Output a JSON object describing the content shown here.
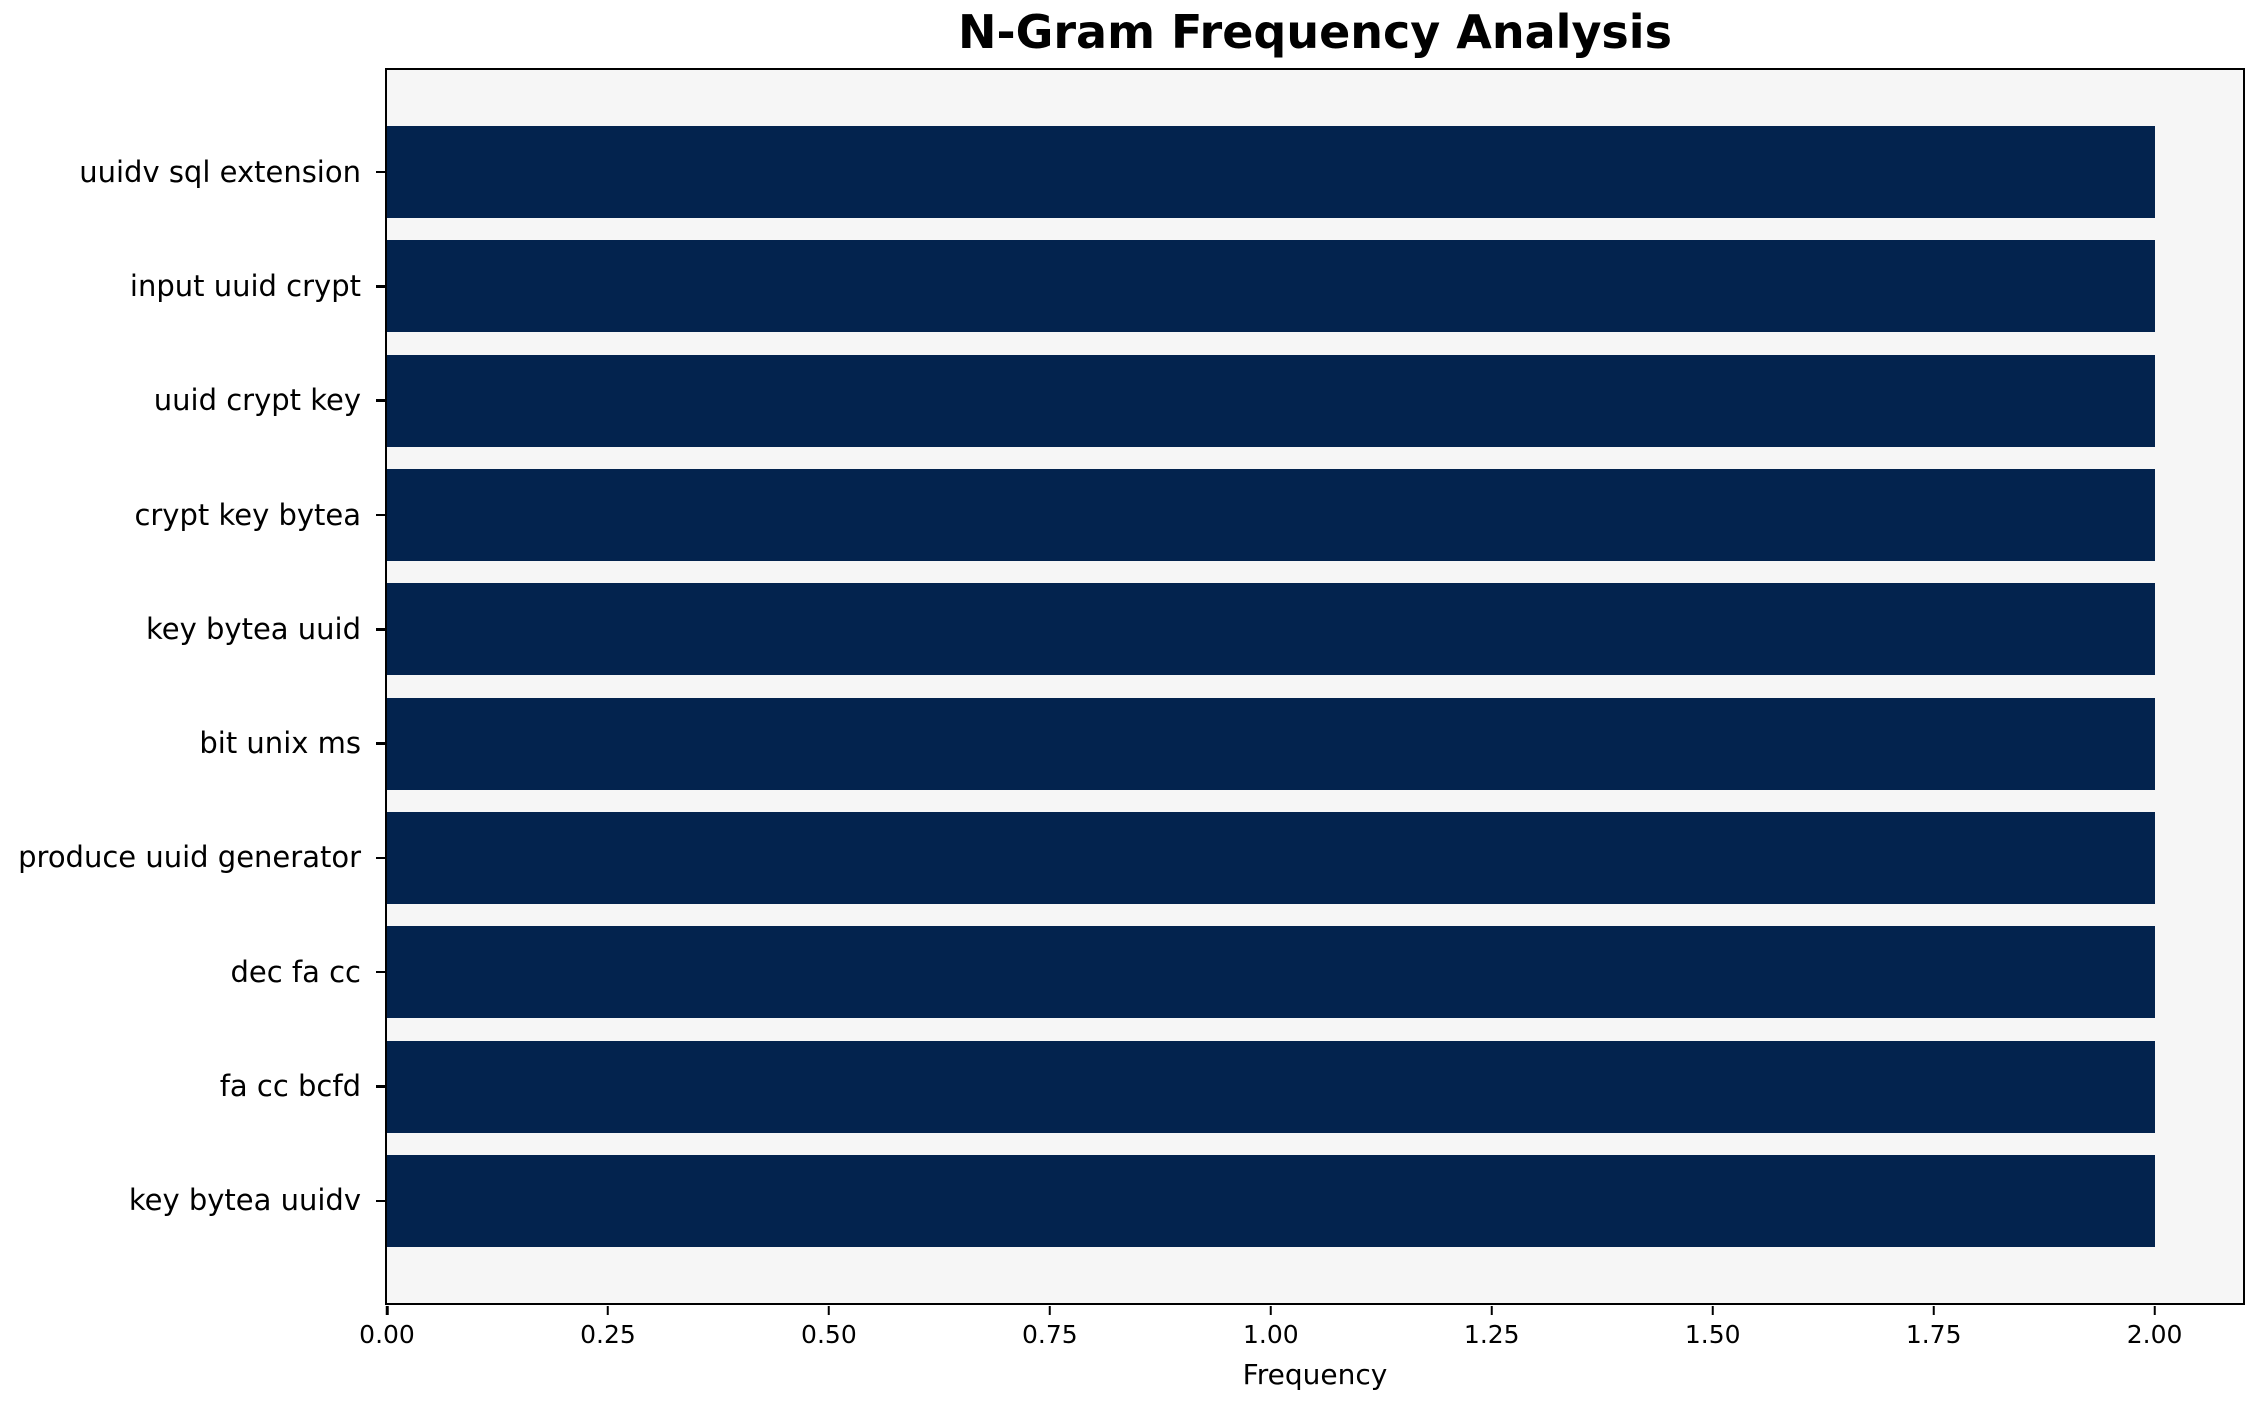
{
  "chart_data": {
    "type": "bar",
    "orientation": "horizontal",
    "title": "N-Gram Frequency Analysis",
    "xlabel": "Frequency",
    "ylabel": "",
    "categories": [
      "uuidv sql extension",
      "input uuid crypt",
      "uuid crypt key",
      "crypt key bytea",
      "key bytea uuid",
      "bit unix ms",
      "produce uuid generator",
      "dec fa cc",
      "fa cc bcfd",
      "key bytea uuidv"
    ],
    "values": [
      2,
      2,
      2,
      2,
      2,
      2,
      2,
      2,
      2,
      2
    ],
    "xlim": [
      0,
      2.1
    ],
    "xticks": {
      "values": [
        0,
        0.25,
        0.5,
        0.75,
        1.0,
        1.25,
        1.5,
        1.75,
        2.0
      ],
      "labels": [
        "0.00",
        "0.25",
        "0.50",
        "0.75",
        "1.00",
        "1.25",
        "1.50",
        "1.75",
        "2.00"
      ]
    },
    "grid": false,
    "legend": "none",
    "bar_height_fraction": 0.8,
    "colors": {
      "bar": "#03234e",
      "plot_background": "#f6f6f6",
      "figure_background": "#ffffff",
      "axis": "#000000",
      "text": "#000000"
    }
  }
}
